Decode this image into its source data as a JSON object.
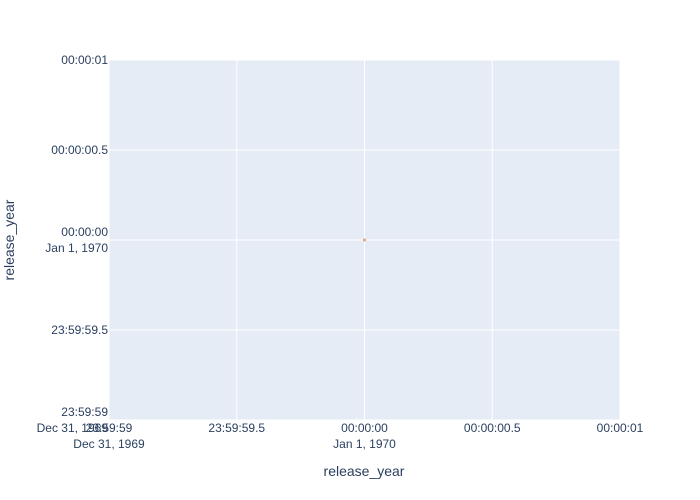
{
  "chart_data": {
    "type": "scatter",
    "x_label": "release_year",
    "y_label": "release_year",
    "x": [
      0
    ],
    "values": [
      0
    ],
    "color": "#e0a36b",
    "xlim": [
      -1,
      1
    ],
    "ylim": [
      -1,
      1
    ],
    "xticks": [
      {
        "value": -1,
        "label": "23:59:59\nDec 31, 1969"
      },
      {
        "value": -0.5,
        "label": "23:59:59.5"
      },
      {
        "value": 0,
        "label": "00:00:00\nJan 1, 1970"
      },
      {
        "value": 0.5,
        "label": "00:00:00.5"
      },
      {
        "value": 1,
        "label": "00:00:01"
      }
    ],
    "yticks": [
      {
        "value": -1,
        "label": "23:59:59\nDec 31, 1969"
      },
      {
        "value": -0.5,
        "label": "23:59:59.5"
      },
      {
        "value": 0,
        "label": "00:00:00\nJan 1, 1970"
      },
      {
        "value": 0.5,
        "label": "00:00:00.5"
      },
      {
        "value": 1,
        "label": "00:00:01"
      }
    ],
    "grid": true
  }
}
